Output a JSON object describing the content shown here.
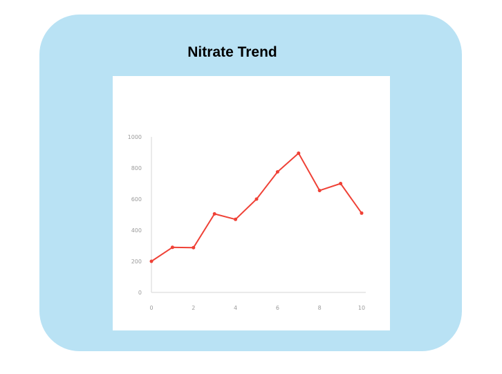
{
  "title": "Nitrate Trend",
  "colors": {
    "card_background": "#b9e2f4",
    "line": "#ef4136",
    "axis": "#d6d6d6",
    "tick_text": "#9a9a9a"
  },
  "chart_data": {
    "type": "line",
    "title": "Nitrate Trend",
    "xlabel": "",
    "ylabel": "",
    "x": [
      0,
      1,
      2,
      3,
      4,
      5,
      6,
      7,
      8,
      9,
      10
    ],
    "series": [
      {
        "values": [
          200,
          290,
          288,
          505,
          470,
          600,
          775,
          895,
          655,
          700,
          510
        ]
      }
    ],
    "xlim": [
      0,
      10
    ],
    "ylim": [
      0,
      1000
    ],
    "x_ticks": [
      "0",
      "2",
      "4",
      "6",
      "8",
      "10"
    ],
    "y_ticks": [
      "0",
      "200",
      "400",
      "600",
      "800",
      "1000"
    ],
    "grid": false,
    "legend": "none"
  }
}
